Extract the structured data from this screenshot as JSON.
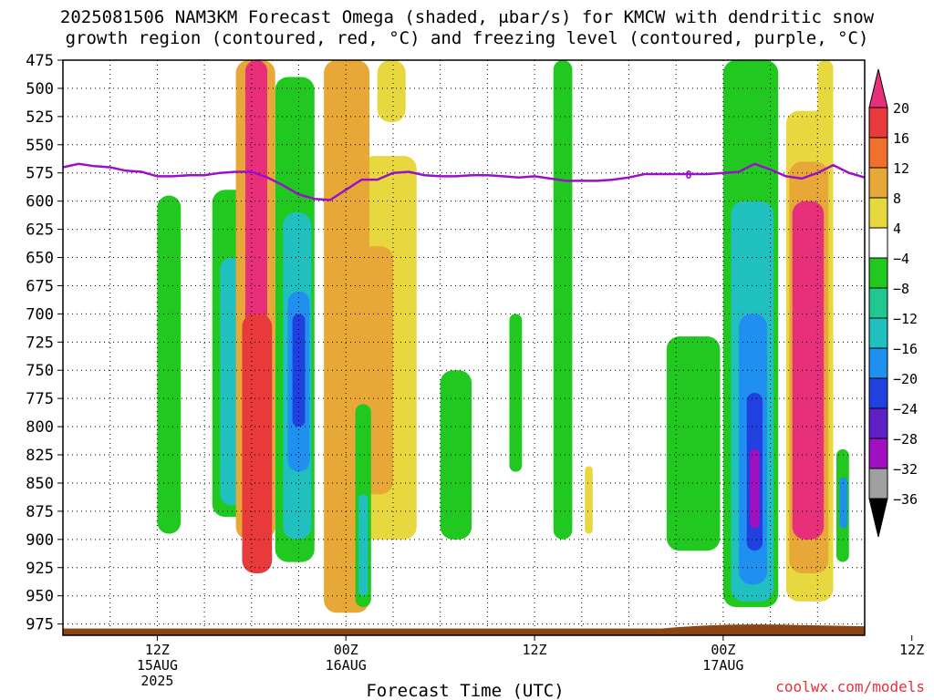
{
  "title_line1": "2025081506 NAM3KM Forecast Omega (shaded, μbar/s) for KMCW with dendritic snow",
  "title_line2": "growth region (contoured, red, °C) and freezing level (contoured, purple, °C)",
  "credit": "coolwx.com/models",
  "chart_data": {
    "type": "heatmap",
    "xlabel": "Forecast Time (UTC)",
    "ylabel": "",
    "y_ticks": [
      475,
      500,
      525,
      550,
      575,
      600,
      625,
      650,
      675,
      700,
      725,
      750,
      775,
      800,
      825,
      850,
      875,
      900,
      925,
      950,
      975
    ],
    "ylim": [
      475,
      985
    ],
    "y_scale": "pressure (hPa), inverted",
    "xlim_hours": [
      6,
      57
    ],
    "x_ticks": [
      {
        "hour": 12,
        "label1": "12Z",
        "label2": "15AUG",
        "label3": "2025"
      },
      {
        "hour": 24,
        "label1": "00Z",
        "label2": "16AUG",
        "label3": ""
      },
      {
        "hour": 36,
        "label1": "12Z",
        "label2": "",
        "label3": ""
      },
      {
        "hour": 48,
        "label1": "00Z",
        "label2": "17AUG",
        "label3": ""
      },
      {
        "hour": 60,
        "label1": "12Z",
        "label2": "",
        "label3": ""
      }
    ],
    "grid": true,
    "colorbar": {
      "labels": [
        "20",
        "16",
        "12",
        "8",
        "4",
        "−4",
        "−8",
        "−12",
        "−16",
        "−20",
        "−24",
        "−28",
        "−32",
        "−36"
      ],
      "colors": [
        "#e8307a",
        "#e83a3a",
        "#f07030",
        "#e8a838",
        "#e8d840",
        "#ffffff",
        "#20c820",
        "#20c890",
        "#20c0c0",
        "#2090f0",
        "#2040e0",
        "#6020c8",
        "#a010c0",
        "#a0a0a0",
        "#000000"
      ]
    },
    "freezing_level": {
      "color": "#9a10c8",
      "label": "0",
      "points": [
        [
          6,
          570
        ],
        [
          7,
          567
        ],
        [
          8,
          569
        ],
        [
          9,
          570
        ],
        [
          10,
          573
        ],
        [
          11,
          574
        ],
        [
          12,
          578
        ],
        [
          13,
          578
        ],
        [
          14,
          577
        ],
        [
          15,
          577
        ],
        [
          16,
          575
        ],
        [
          17,
          574
        ],
        [
          18,
          574
        ],
        [
          19,
          579
        ],
        [
          20,
          586
        ],
        [
          21,
          594
        ],
        [
          22,
          598
        ],
        [
          23,
          599
        ],
        [
          24,
          590
        ],
        [
          25,
          581
        ],
        [
          26,
          581
        ],
        [
          27,
          575
        ],
        [
          28,
          574
        ],
        [
          29,
          577
        ],
        [
          30,
          578
        ],
        [
          31,
          578
        ],
        [
          32,
          577
        ],
        [
          33,
          577
        ],
        [
          34,
          578
        ],
        [
          35,
          579
        ],
        [
          36,
          578
        ],
        [
          37,
          580
        ],
        [
          38,
          582
        ],
        [
          39,
          582
        ],
        [
          40,
          582
        ],
        [
          41,
          581
        ],
        [
          42,
          579
        ],
        [
          43,
          576
        ],
        [
          44,
          576
        ],
        [
          45,
          576
        ],
        [
          46,
          576
        ],
        [
          47,
          576
        ],
        [
          48,
          575
        ],
        [
          49,
          574
        ],
        [
          50,
          567
        ],
        [
          51,
          572
        ],
        [
          52,
          578
        ],
        [
          53,
          580
        ],
        [
          54,
          575
        ],
        [
          55,
          568
        ],
        [
          56,
          575
        ],
        [
          57,
          579
        ],
        [
          58,
          573
        ],
        [
          59,
          572
        ],
        [
          60,
          569
        ],
        [
          61,
          570
        ],
        [
          62,
          575
        ],
        [
          63,
          567
        ],
        [
          64,
          565
        ],
        [
          65,
          563
        ]
      ]
    },
    "ground_color": "#8b4513",
    "shading": [
      {
        "name": "green-1",
        "value": -6,
        "hour_range": [
          12.0,
          13.5
        ],
        "p_range": [
          595,
          895
        ]
      },
      {
        "name": "green-2",
        "value": -6,
        "hour_range": [
          15.5,
          18.0
        ],
        "p_range": [
          590,
          880
        ]
      },
      {
        "name": "teal-1",
        "value": -12,
        "hour_range": [
          16.0,
          17.5
        ],
        "p_range": [
          650,
          870
        ]
      },
      {
        "name": "green-3",
        "value": -6,
        "hour_range": [
          19.5,
          22.0
        ],
        "p_range": [
          490,
          920
        ]
      },
      {
        "name": "teal-2",
        "value": -12,
        "hour_range": [
          20.0,
          21.8
        ],
        "p_range": [
          610,
          900
        ]
      },
      {
        "name": "blue-1",
        "value": -18,
        "hour_range": [
          20.3,
          21.7
        ],
        "p_range": [
          680,
          840
        ]
      },
      {
        "name": "darkblue-1",
        "value": -22,
        "hour_range": [
          20.6,
          21.4
        ],
        "p_range": [
          700,
          800
        ]
      },
      {
        "name": "orange-1",
        "value": 10,
        "hour_range": [
          17.0,
          19.5
        ],
        "p_range": [
          475,
          900
        ]
      },
      {
        "name": "magenta-1",
        "value": 22,
        "hour_range": [
          17.6,
          19.0
        ],
        "p_range": [
          475,
          890
        ]
      },
      {
        "name": "red-1",
        "value": 18,
        "hour_range": [
          17.4,
          19.3
        ],
        "p_range": [
          700,
          930
        ]
      },
      {
        "name": "yellow-1",
        "value": 6,
        "hour_range": [
          25.0,
          28.5
        ],
        "p_range": [
          560,
          900
        ]
      },
      {
        "name": "orange-2",
        "value": 10,
        "hour_range": [
          25.0,
          27.0
        ],
        "p_range": [
          640,
          860
        ]
      },
      {
        "name": "yellow-2",
        "value": 6,
        "hour_range": [
          26.0,
          27.8
        ],
        "p_range": [
          475,
          530
        ]
      },
      {
        "name": "magenta-2",
        "value": 22,
        "hour_range": [
          22.8,
          25.2
        ],
        "p_range": [
          475,
          955
        ]
      },
      {
        "name": "orange-3",
        "value": 10,
        "hour_range": [
          22.6,
          25.5
        ],
        "p_range": [
          475,
          965
        ]
      },
      {
        "name": "green-4",
        "value": -6,
        "hour_range": [
          24.6,
          25.6
        ],
        "p_range": [
          780,
          960
        ]
      },
      {
        "name": "teal-3",
        "value": -12,
        "hour_range": [
          24.8,
          25.4
        ],
        "p_range": [
          860,
          950
        ]
      },
      {
        "name": "green-5",
        "value": -6,
        "hour_range": [
          30.0,
          32.0
        ],
        "p_range": [
          750,
          900
        ]
      },
      {
        "name": "green-6",
        "value": -6,
        "hour_range": [
          34.4,
          35.2
        ],
        "p_range": [
          700,
          840
        ]
      },
      {
        "name": "green-7",
        "value": -6,
        "hour_range": [
          37.2,
          38.4
        ],
        "p_range": [
          475,
          900
        ]
      },
      {
        "name": "yellow-3",
        "value": 6,
        "hour_range": [
          39.2,
          39.7
        ],
        "p_range": [
          835,
          895
        ]
      },
      {
        "name": "green-8",
        "value": -6,
        "hour_range": [
          44.4,
          47.8
        ],
        "p_range": [
          720,
          910
        ]
      },
      {
        "name": "green-9",
        "value": -6,
        "hour_range": [
          48.0,
          51.5
        ],
        "p_range": [
          475,
          960
        ]
      },
      {
        "name": "teal-4",
        "value": -12,
        "hour_range": [
          48.5,
          51.2
        ],
        "p_range": [
          600,
          955
        ]
      },
      {
        "name": "blue-2",
        "value": -18,
        "hour_range": [
          49.0,
          50.8
        ],
        "p_range": [
          700,
          940
        ]
      },
      {
        "name": "darkblue-2",
        "value": -22,
        "hour_range": [
          49.5,
          50.5
        ],
        "p_range": [
          770,
          910
        ]
      },
      {
        "name": "purple-1",
        "value": -30,
        "hour_range": [
          49.7,
          50.3
        ],
        "p_range": [
          820,
          890
        ]
      },
      {
        "name": "yellow-4",
        "value": 6,
        "hour_range": [
          52.0,
          55.0
        ],
        "p_range": [
          520,
          955
        ]
      },
      {
        "name": "orange-4",
        "value": 10,
        "hour_range": [
          52.2,
          54.7
        ],
        "p_range": [
          565,
          930
        ]
      },
      {
        "name": "magenta-3",
        "value": 22,
        "hour_range": [
          52.4,
          54.4
        ],
        "p_range": [
          600,
          900
        ]
      },
      {
        "name": "yellow-5",
        "value": 6,
        "hour_range": [
          54.0,
          55.0
        ],
        "p_range": [
          475,
          560
        ]
      },
      {
        "name": "green-10",
        "value": -6,
        "hour_range": [
          55.2,
          56.0
        ],
        "p_range": [
          820,
          920
        ]
      },
      {
        "name": "blue-3",
        "value": -18,
        "hour_range": [
          55.4,
          55.9
        ],
        "p_range": [
          845,
          890
        ]
      },
      {
        "name": "yellow-6",
        "value": 6,
        "hour_range": [
          57.0,
          59.5
        ],
        "p_range": [
          620,
          800
        ]
      },
      {
        "name": "green-11",
        "value": -6,
        "hour_range": [
          57.5,
          58.2
        ],
        "p_range": [
          890,
          912
        ]
      },
      {
        "name": "green-12",
        "value": -6,
        "hour_range": [
          60.2,
          60.7
        ],
        "p_range": [
          740,
          760
        ]
      },
      {
        "name": "green-13",
        "value": -6,
        "hour_range": [
          62.0,
          62.7
        ],
        "p_range": [
          710,
          725
        ]
      }
    ]
  }
}
